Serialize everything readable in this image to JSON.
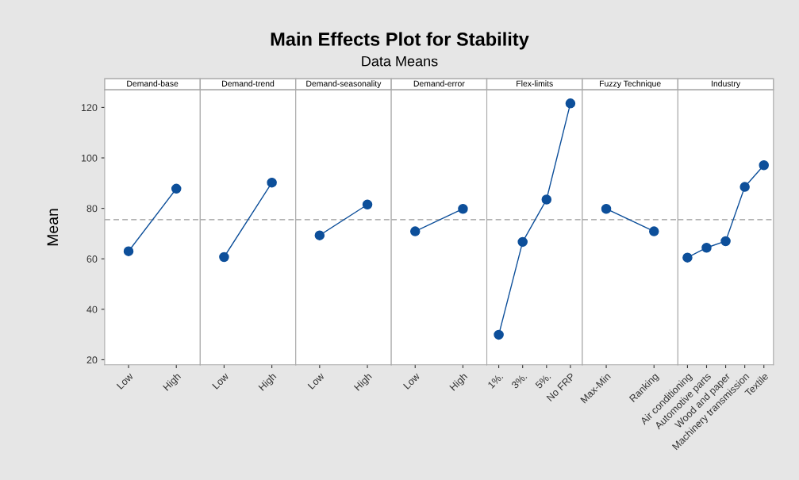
{
  "chart_data": [
    {
      "type": "line",
      "title": "Demand-base",
      "annotations": [
        "Main Effects Plot for Stability",
        "Data Means"
      ],
      "ylabel": "Mean",
      "categories": [
        "Low",
        "High"
      ],
      "series": [
        {
          "color": "#0d4f9a",
          "values": [
            63.0,
            87.8
          ]
        }
      ],
      "ylim": [
        18,
        127
      ],
      "yticks": [
        20,
        40,
        60,
        80,
        100,
        120
      ],
      "ref_lines": [
        {
          "axis": "y",
          "value": 75.5,
          "color": "#999999",
          "line_style": "dashed"
        }
      ],
      "marker": "circle",
      "grid": false
    },
    {
      "type": "line",
      "title": "Demand-trend",
      "categories": [
        "Low",
        "High"
      ],
      "series": [
        {
          "color": "#0d4f9a",
          "values": [
            60.7,
            90.2
          ]
        }
      ],
      "ylim": [
        18,
        127
      ],
      "tick_labels": "x",
      "ref_lines": [
        {
          "axis": "y",
          "value": 75.5,
          "color": "#999999",
          "line_style": "dashed"
        }
      ],
      "marker": "circle",
      "grid": false
    },
    {
      "type": "line",
      "title": "Demand-seasonality",
      "categories": [
        "Low",
        "High"
      ],
      "series": [
        {
          "color": "#0d4f9a",
          "values": [
            69.3,
            81.5
          ]
        }
      ],
      "ylim": [
        18,
        127
      ],
      "tick_labels": "x",
      "ref_lines": [
        {
          "axis": "y",
          "value": 75.5,
          "color": "#999999",
          "line_style": "dashed"
        }
      ],
      "marker": "circle",
      "grid": false
    },
    {
      "type": "line",
      "title": "Demand-error",
      "categories": [
        "Low",
        "High"
      ],
      "series": [
        {
          "color": "#0d4f9a",
          "values": [
            70.9,
            79.8
          ]
        }
      ],
      "ylim": [
        18,
        127
      ],
      "tick_labels": "x",
      "ref_lines": [
        {
          "axis": "y",
          "value": 75.5,
          "color": "#999999",
          "line_style": "dashed"
        }
      ],
      "marker": "circle",
      "grid": false
    },
    {
      "type": "line",
      "title": "Flex-limits",
      "categories": [
        "1%.",
        "3%.",
        "5%.",
        "No FRP"
      ],
      "series": [
        {
          "color": "#0d4f9a",
          "values": [
            29.9,
            66.7,
            83.5,
            121.6
          ]
        }
      ],
      "ylim": [
        18,
        127
      ],
      "tick_labels": "x",
      "ref_lines": [
        {
          "axis": "y",
          "value": 75.5,
          "color": "#999999",
          "line_style": "dashed"
        }
      ],
      "marker": "circle",
      "grid": false
    },
    {
      "type": "line",
      "title": "Fuzzy Technique",
      "categories": [
        "Max-Min",
        "Ranking"
      ],
      "series": [
        {
          "color": "#0d4f9a",
          "values": [
            79.8,
            70.9
          ]
        }
      ],
      "ylim": [
        18,
        127
      ],
      "tick_labels": "x",
      "ref_lines": [
        {
          "axis": "y",
          "value": 75.5,
          "color": "#999999",
          "line_style": "dashed"
        }
      ],
      "marker": "circle",
      "grid": false
    },
    {
      "type": "line",
      "title": "Industry",
      "categories": [
        "Air conditioning",
        "Automotive parts",
        "Wood and paper",
        "Machinery transmission",
        "Textile"
      ],
      "series": [
        {
          "color": "#0d4f9a",
          "values": [
            60.5,
            64.4,
            67.0,
            88.5,
            97.1
          ]
        }
      ],
      "ylim": [
        18,
        127
      ],
      "tick_labels": "x",
      "ref_lines": [
        {
          "axis": "y",
          "value": 75.5,
          "color": "#999999",
          "line_style": "dashed"
        }
      ],
      "marker": "circle",
      "grid": false
    }
  ]
}
